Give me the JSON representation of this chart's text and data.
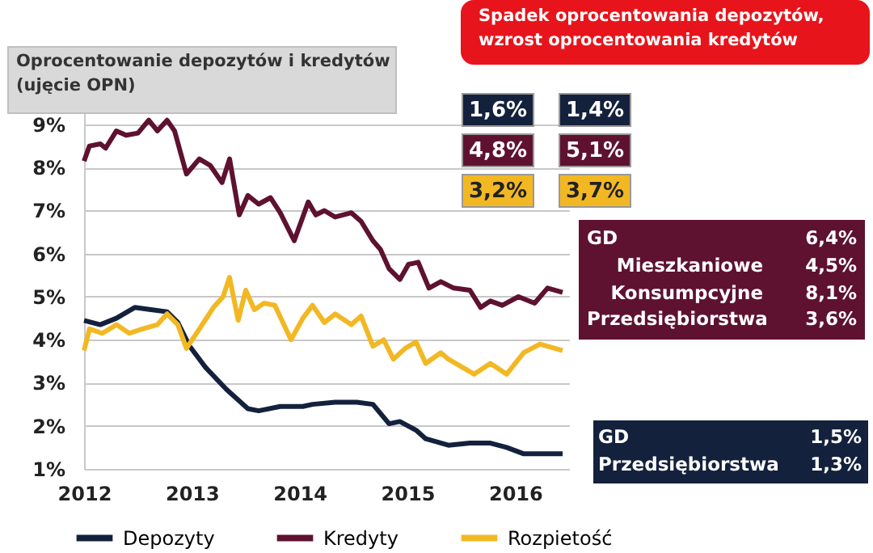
{
  "chart_data": {
    "type": "line",
    "title": "Oprocentowanie  depozytów i kredytów\n(ujęcie OPN)",
    "xlim": [
      2012,
      2016.5
    ],
    "xticks": [
      2012,
      2013,
      2014,
      2015,
      2016
    ],
    "ylim": [
      1,
      9.3
    ],
    "yticks": [
      {
        "value": 1,
        "label": "1%"
      },
      {
        "value": 2,
        "label": "2%"
      },
      {
        "value": 3,
        "label": "3%"
      },
      {
        "value": 4,
        "label": "4%"
      },
      {
        "value": 5,
        "label": "5%"
      },
      {
        "value": 6,
        "label": "6%"
      },
      {
        "value": 7,
        "label": "7%"
      },
      {
        "value": 8,
        "label": "8%"
      },
      {
        "value": 9,
        "label": "9%"
      }
    ],
    "grid": "y",
    "legend": "bottom",
    "marker": "none",
    "line_style": "solid",
    "series": [
      {
        "name": "Depozyty",
        "color": "#14213d",
        "x": [
          2012.0,
          2012.15,
          2012.3,
          2012.47,
          2012.62,
          2012.77,
          2012.87,
          2012.98,
          2013.13,
          2013.32,
          2013.52,
          2013.62,
          2013.82,
          2014.03,
          2014.12,
          2014.33,
          2014.53,
          2014.68,
          2014.83,
          2014.93,
          2015.08,
          2015.17,
          2015.38,
          2015.58,
          2015.77,
          2015.92,
          2016.08,
          2016.44
        ],
        "values": [
          4.45,
          4.35,
          4.5,
          4.75,
          4.7,
          4.65,
          4.4,
          3.85,
          3.35,
          2.85,
          2.4,
          2.35,
          2.45,
          2.45,
          2.5,
          2.55,
          2.55,
          2.5,
          2.05,
          2.1,
          1.9,
          1.7,
          1.55,
          1.6,
          1.6,
          1.5,
          1.35,
          1.35
        ]
      },
      {
        "name": "Kredyty",
        "color": "#5e1230",
        "x": [
          2012.0,
          2012.05,
          2012.15,
          2012.2,
          2012.3,
          2012.39,
          2012.5,
          2012.6,
          2012.68,
          2012.77,
          2012.84,
          2012.95,
          2013.07,
          2013.17,
          2013.28,
          2013.35,
          2013.44,
          2013.52,
          2013.62,
          2013.73,
          2013.82,
          2013.95,
          2014.08,
          2014.15,
          2014.23,
          2014.33,
          2014.48,
          2014.57,
          2014.68,
          2014.75,
          2014.83,
          2014.93,
          2015.01,
          2015.1,
          2015.2,
          2015.31,
          2015.43,
          2015.58,
          2015.68,
          2015.77,
          2015.88,
          2016.03,
          2016.18,
          2016.3,
          2016.44
        ],
        "values": [
          8.15,
          8.5,
          8.55,
          8.45,
          8.85,
          8.75,
          8.8,
          9.1,
          8.85,
          9.1,
          8.85,
          7.85,
          8.2,
          8.05,
          7.65,
          8.2,
          6.9,
          7.35,
          7.15,
          7.3,
          6.95,
          6.3,
          7.2,
          6.9,
          7.0,
          6.85,
          6.95,
          6.75,
          6.3,
          6.1,
          5.65,
          5.4,
          5.75,
          5.8,
          5.2,
          5.35,
          5.2,
          5.15,
          4.75,
          4.9,
          4.8,
          5.0,
          4.85,
          5.2,
          5.1
        ]
      },
      {
        "name": "Rozpietość",
        "color": "#f2b824",
        "x": [
          2012.0,
          2012.05,
          2012.17,
          2012.3,
          2012.42,
          2012.54,
          2012.68,
          2012.77,
          2012.87,
          2012.95,
          2013.07,
          2013.2,
          2013.29,
          2013.35,
          2013.43,
          2013.5,
          2013.58,
          2013.67,
          2013.77,
          2013.92,
          2014.03,
          2014.12,
          2014.23,
          2014.33,
          2014.48,
          2014.57,
          2014.68,
          2014.78,
          2014.87,
          2014.98,
          2015.08,
          2015.17,
          2015.31,
          2015.38,
          2015.62,
          2015.77,
          2015.92,
          2016.08,
          2016.23,
          2016.44
        ],
        "values": [
          3.75,
          4.25,
          4.15,
          4.35,
          4.15,
          4.25,
          4.35,
          4.6,
          4.35,
          3.8,
          4.25,
          4.75,
          5.0,
          5.45,
          4.45,
          5.15,
          4.7,
          4.85,
          4.8,
          4.0,
          4.5,
          4.8,
          4.4,
          4.6,
          4.35,
          4.55,
          3.85,
          4.0,
          3.55,
          3.8,
          3.95,
          3.45,
          3.7,
          3.55,
          3.2,
          3.45,
          3.2,
          3.7,
          3.9,
          3.75
        ]
      }
    ],
    "annotations": [
      "Spadek oprocentowania depozytów,\nwzrost oprocentowania  kredytów",
      "1,6%",
      "1,4%",
      "4,8%",
      "5,1%",
      "3,2%",
      "3,7%",
      "GD",
      "6,4%",
      "Mieszkaniowe",
      "4,5%",
      "Konsumpcyjne",
      "8,1%",
      "Przedsiębiorstwa",
      "3,6%",
      "GD",
      "1,5%",
      "Przedsiębiorstwa",
      "1,3%"
    ]
  }
}
